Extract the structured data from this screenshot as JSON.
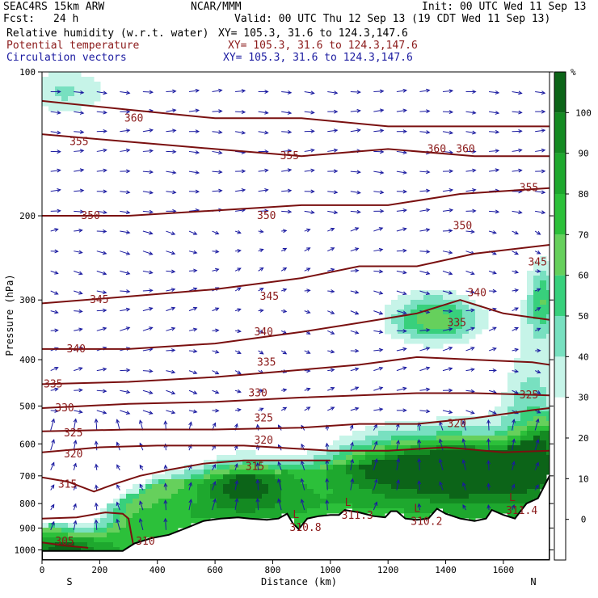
{
  "header": {
    "model": "SEAC4RS 15km ARW",
    "center": "NCAR/MMM",
    "init": "Init: 00 UTC Wed 11 Sep 13",
    "fcst_label": "Fcst:",
    "fcst_value": "24 h",
    "valid": "Valid: 00 UTC Thu 12 Sep 13 (19 CDT Wed 11 Sep 13)",
    "fields": [
      {
        "name": "Relative humidity (w.r.t. water)",
        "xy": "XY= 105.3, 31.6 to 124.3,147.6",
        "color": "#000000"
      },
      {
        "name": "Potential temperature",
        "xy": "XY= 105.3, 31.6 to 124.3,147.6",
        "color": "#8b1a1a"
      },
      {
        "name": "Circulation vectors",
        "xy": "XY= 105.3, 31.6 to 124.3,147.6",
        "color": "#1a1aa0"
      }
    ]
  },
  "chart_data": {
    "type": "heatmap",
    "subtype": "vertical cross-section",
    "xlabel": "Distance (km)",
    "ylabel": "Pressure (hPa)",
    "xlim": [
      0,
      1760
    ],
    "ylim": [
      1050,
      100
    ],
    "yscale": "log",
    "x_ticks": [
      0,
      200,
      400,
      600,
      800,
      1000,
      1200,
      1400,
      1600
    ],
    "y_ticks": [
      100,
      200,
      300,
      400,
      500,
      600,
      700,
      800,
      900,
      1000
    ],
    "x_end_labels": {
      "left": "S",
      "right": "N"
    },
    "colorbar": {
      "unit": "%",
      "ticks": [
        0,
        10,
        20,
        30,
        40,
        50,
        60,
        70,
        80,
        90,
        100
      ],
      "levels": [
        {
          "from": 30,
          "to": 40,
          "color": "#c6f4e8"
        },
        {
          "from": 40,
          "to": 50,
          "color": "#78e0c0"
        },
        {
          "from": 50,
          "to": 60,
          "color": "#38d07c"
        },
        {
          "from": 60,
          "to": 70,
          "color": "#66d05c"
        },
        {
          "from": 70,
          "to": 80,
          "color": "#2cc03a"
        },
        {
          "from": 80,
          "to": 90,
          "color": "#1ea82e"
        },
        {
          "from": 90,
          "to": 100,
          "color": "#148a22"
        },
        {
          "from": 100,
          "to": 110,
          "color": "#0c6418"
        }
      ]
    },
    "theta_isolines": [
      {
        "level": 305,
        "label": "305",
        "points": [
          [
            0,
            965
          ],
          [
            80,
            980
          ],
          [
            160,
            990
          ]
        ]
      },
      {
        "level": 310,
        "label": "310",
        "points": [
          [
            0,
            860
          ],
          [
            120,
            855
          ],
          [
            220,
            835
          ],
          [
            280,
            840
          ],
          [
            300,
            860
          ],
          [
            310,
            930
          ],
          [
            320,
            1000
          ]
        ]
      },
      {
        "level": 315,
        "label": "315",
        "points": [
          [
            0,
            705
          ],
          [
            90,
            720
          ],
          [
            180,
            755
          ],
          [
            260,
            725
          ],
          [
            340,
            700
          ],
          [
            440,
            680
          ],
          [
            560,
            660
          ],
          [
            700,
            650
          ],
          [
            860,
            650
          ],
          [
            1000,
            650
          ]
        ]
      },
      {
        "level": 320,
        "label": "320",
        "points": [
          [
            0,
            625
          ],
          [
            200,
            610
          ],
          [
            400,
            605
          ],
          [
            700,
            605
          ],
          [
            1000,
            620
          ],
          [
            1200,
            620
          ],
          [
            1400,
            610
          ],
          [
            1600,
            625
          ],
          [
            1760,
            620
          ]
        ]
      },
      {
        "level": 325,
        "label": "325",
        "points": [
          [
            0,
            565
          ],
          [
            300,
            560
          ],
          [
            600,
            560
          ],
          [
            900,
            555
          ],
          [
            1100,
            545
          ],
          [
            1300,
            545
          ],
          [
            1500,
            530
          ],
          [
            1700,
            510
          ],
          [
            1760,
            505
          ]
        ]
      },
      {
        "level": 330,
        "label": "330",
        "points": [
          [
            0,
            505
          ],
          [
            300,
            495
          ],
          [
            600,
            490
          ],
          [
            900,
            480
          ],
          [
            1100,
            475
          ],
          [
            1300,
            470
          ],
          [
            1500,
            470
          ],
          [
            1760,
            475
          ]
        ]
      },
      {
        "level": 335,
        "label": "335",
        "points": [
          [
            0,
            450
          ],
          [
            300,
            445
          ],
          [
            600,
            435
          ],
          [
            900,
            420
          ],
          [
            1100,
            410
          ],
          [
            1300,
            395
          ],
          [
            1500,
            400
          ],
          [
            1700,
            405
          ],
          [
            1760,
            410
          ]
        ]
      },
      {
        "level": 340,
        "label": "340",
        "points": [
          [
            0,
            380
          ],
          [
            300,
            380
          ],
          [
            600,
            370
          ],
          [
            900,
            350
          ],
          [
            1100,
            335
          ],
          [
            1300,
            320
          ],
          [
            1450,
            300
          ],
          [
            1600,
            320
          ],
          [
            1760,
            330
          ]
        ]
      },
      {
        "level": 345,
        "label": "345",
        "points": [
          [
            0,
            305
          ],
          [
            300,
            295
          ],
          [
            600,
            285
          ],
          [
            900,
            270
          ],
          [
            1100,
            255
          ],
          [
            1300,
            255
          ],
          [
            1500,
            240
          ],
          [
            1760,
            230
          ]
        ]
      },
      {
        "level": 350,
        "label": "350",
        "points": [
          [
            0,
            200
          ],
          [
            300,
            200
          ],
          [
            600,
            195
          ],
          [
            900,
            190
          ],
          [
            1200,
            190
          ],
          [
            1450,
            180
          ],
          [
            1760,
            175
          ]
        ]
      },
      {
        "level": 355,
        "label": "355",
        "points": [
          [
            0,
            135
          ],
          [
            300,
            140
          ],
          [
            600,
            145
          ],
          [
            900,
            150
          ],
          [
            1200,
            145
          ],
          [
            1500,
            150
          ],
          [
            1760,
            150
          ]
        ]
      },
      {
        "level": 360,
        "label": "360",
        "points": [
          [
            0,
            115
          ],
          [
            300,
            120
          ],
          [
            600,
            125
          ],
          [
            900,
            125
          ],
          [
            1200,
            130
          ],
          [
            1500,
            130
          ],
          [
            1760,
            130
          ]
        ]
      }
    ],
    "theta_labels": [
      {
        "text": "305",
        "x": 40,
        "p": 960
      },
      {
        "text": "310",
        "x": 320,
        "p": 960
      },
      {
        "text": "315",
        "x": 50,
        "p": 730
      },
      {
        "text": "315",
        "x": 700,
        "p": 670
      },
      {
        "text": "320",
        "x": 70,
        "p": 630
      },
      {
        "text": "320",
        "x": 730,
        "p": 590
      },
      {
        "text": "320",
        "x": 1400,
        "p": 545
      },
      {
        "text": "325",
        "x": 70,
        "p": 570
      },
      {
        "text": "325",
        "x": 730,
        "p": 530
      },
      {
        "text": "325",
        "x": 1650,
        "p": 475
      },
      {
        "text": "330",
        "x": 40,
        "p": 505
      },
      {
        "text": "330",
        "x": 710,
        "p": 470
      },
      {
        "text": "335",
        "x": 0,
        "p": 450
      },
      {
        "text": "335",
        "x": 740,
        "p": 405
      },
      {
        "text": "335",
        "x": 1400,
        "p": 335
      },
      {
        "text": "340",
        "x": 80,
        "p": 380
      },
      {
        "text": "340",
        "x": 730,
        "p": 350
      },
      {
        "text": "340",
        "x": 1470,
        "p": 290
      },
      {
        "text": "345",
        "x": 160,
        "p": 300
      },
      {
        "text": "345",
        "x": 750,
        "p": 295
      },
      {
        "text": "345",
        "x": 1680,
        "p": 250
      },
      {
        "text": "350",
        "x": 130,
        "p": 200
      },
      {
        "text": "350",
        "x": 740,
        "p": 200
      },
      {
        "text": "350",
        "x": 1420,
        "p": 210
      },
      {
        "text": "355",
        "x": 90,
        "p": 140
      },
      {
        "text": "355",
        "x": 820,
        "p": 150
      },
      {
        "text": "355",
        "x": 1650,
        "p": 175
      },
      {
        "text": "360",
        "x": 280,
        "p": 125
      },
      {
        "text": "360",
        "x": 1330,
        "p": 145
      },
      {
        "text": "360",
        "x": 1430,
        "p": 145
      }
    ],
    "low_markers": [
      {
        "label": "L",
        "value": "311.3",
        "x": 1050,
        "p": 835
      },
      {
        "label": "L",
        "value": "310.2",
        "x": 1290,
        "p": 860
      },
      {
        "label": "L",
        "value": "310.8",
        "x": 870,
        "p": 885
      },
      {
        "label": "L",
        "value": "311.4",
        "x": 1620,
        "p": 815
      }
    ],
    "terrain_pressure": [
      [
        0,
        1005
      ],
      [
        280,
        1005
      ],
      [
        320,
        970
      ],
      [
        380,
        945
      ],
      [
        440,
        930
      ],
      [
        500,
        900
      ],
      [
        560,
        870
      ],
      [
        620,
        860
      ],
      [
        680,
        855
      ],
      [
        720,
        860
      ],
      [
        780,
        865
      ],
      [
        820,
        860
      ],
      [
        850,
        840
      ],
      [
        870,
        880
      ],
      [
        890,
        905
      ],
      [
        920,
        860
      ],
      [
        960,
        850
      ],
      [
        1000,
        845
      ],
      [
        1030,
        845
      ],
      [
        1050,
        825
      ],
      [
        1100,
        835
      ],
      [
        1150,
        850
      ],
      [
        1190,
        855
      ],
      [
        1210,
        830
      ],
      [
        1230,
        830
      ],
      [
        1260,
        860
      ],
      [
        1300,
        865
      ],
      [
        1340,
        860
      ],
      [
        1370,
        820
      ],
      [
        1400,
        840
      ],
      [
        1450,
        860
      ],
      [
        1500,
        870
      ],
      [
        1540,
        860
      ],
      [
        1560,
        825
      ],
      [
        1600,
        845
      ],
      [
        1640,
        860
      ],
      [
        1680,
        800
      ],
      [
        1720,
        780
      ],
      [
        1760,
        700
      ]
    ]
  }
}
